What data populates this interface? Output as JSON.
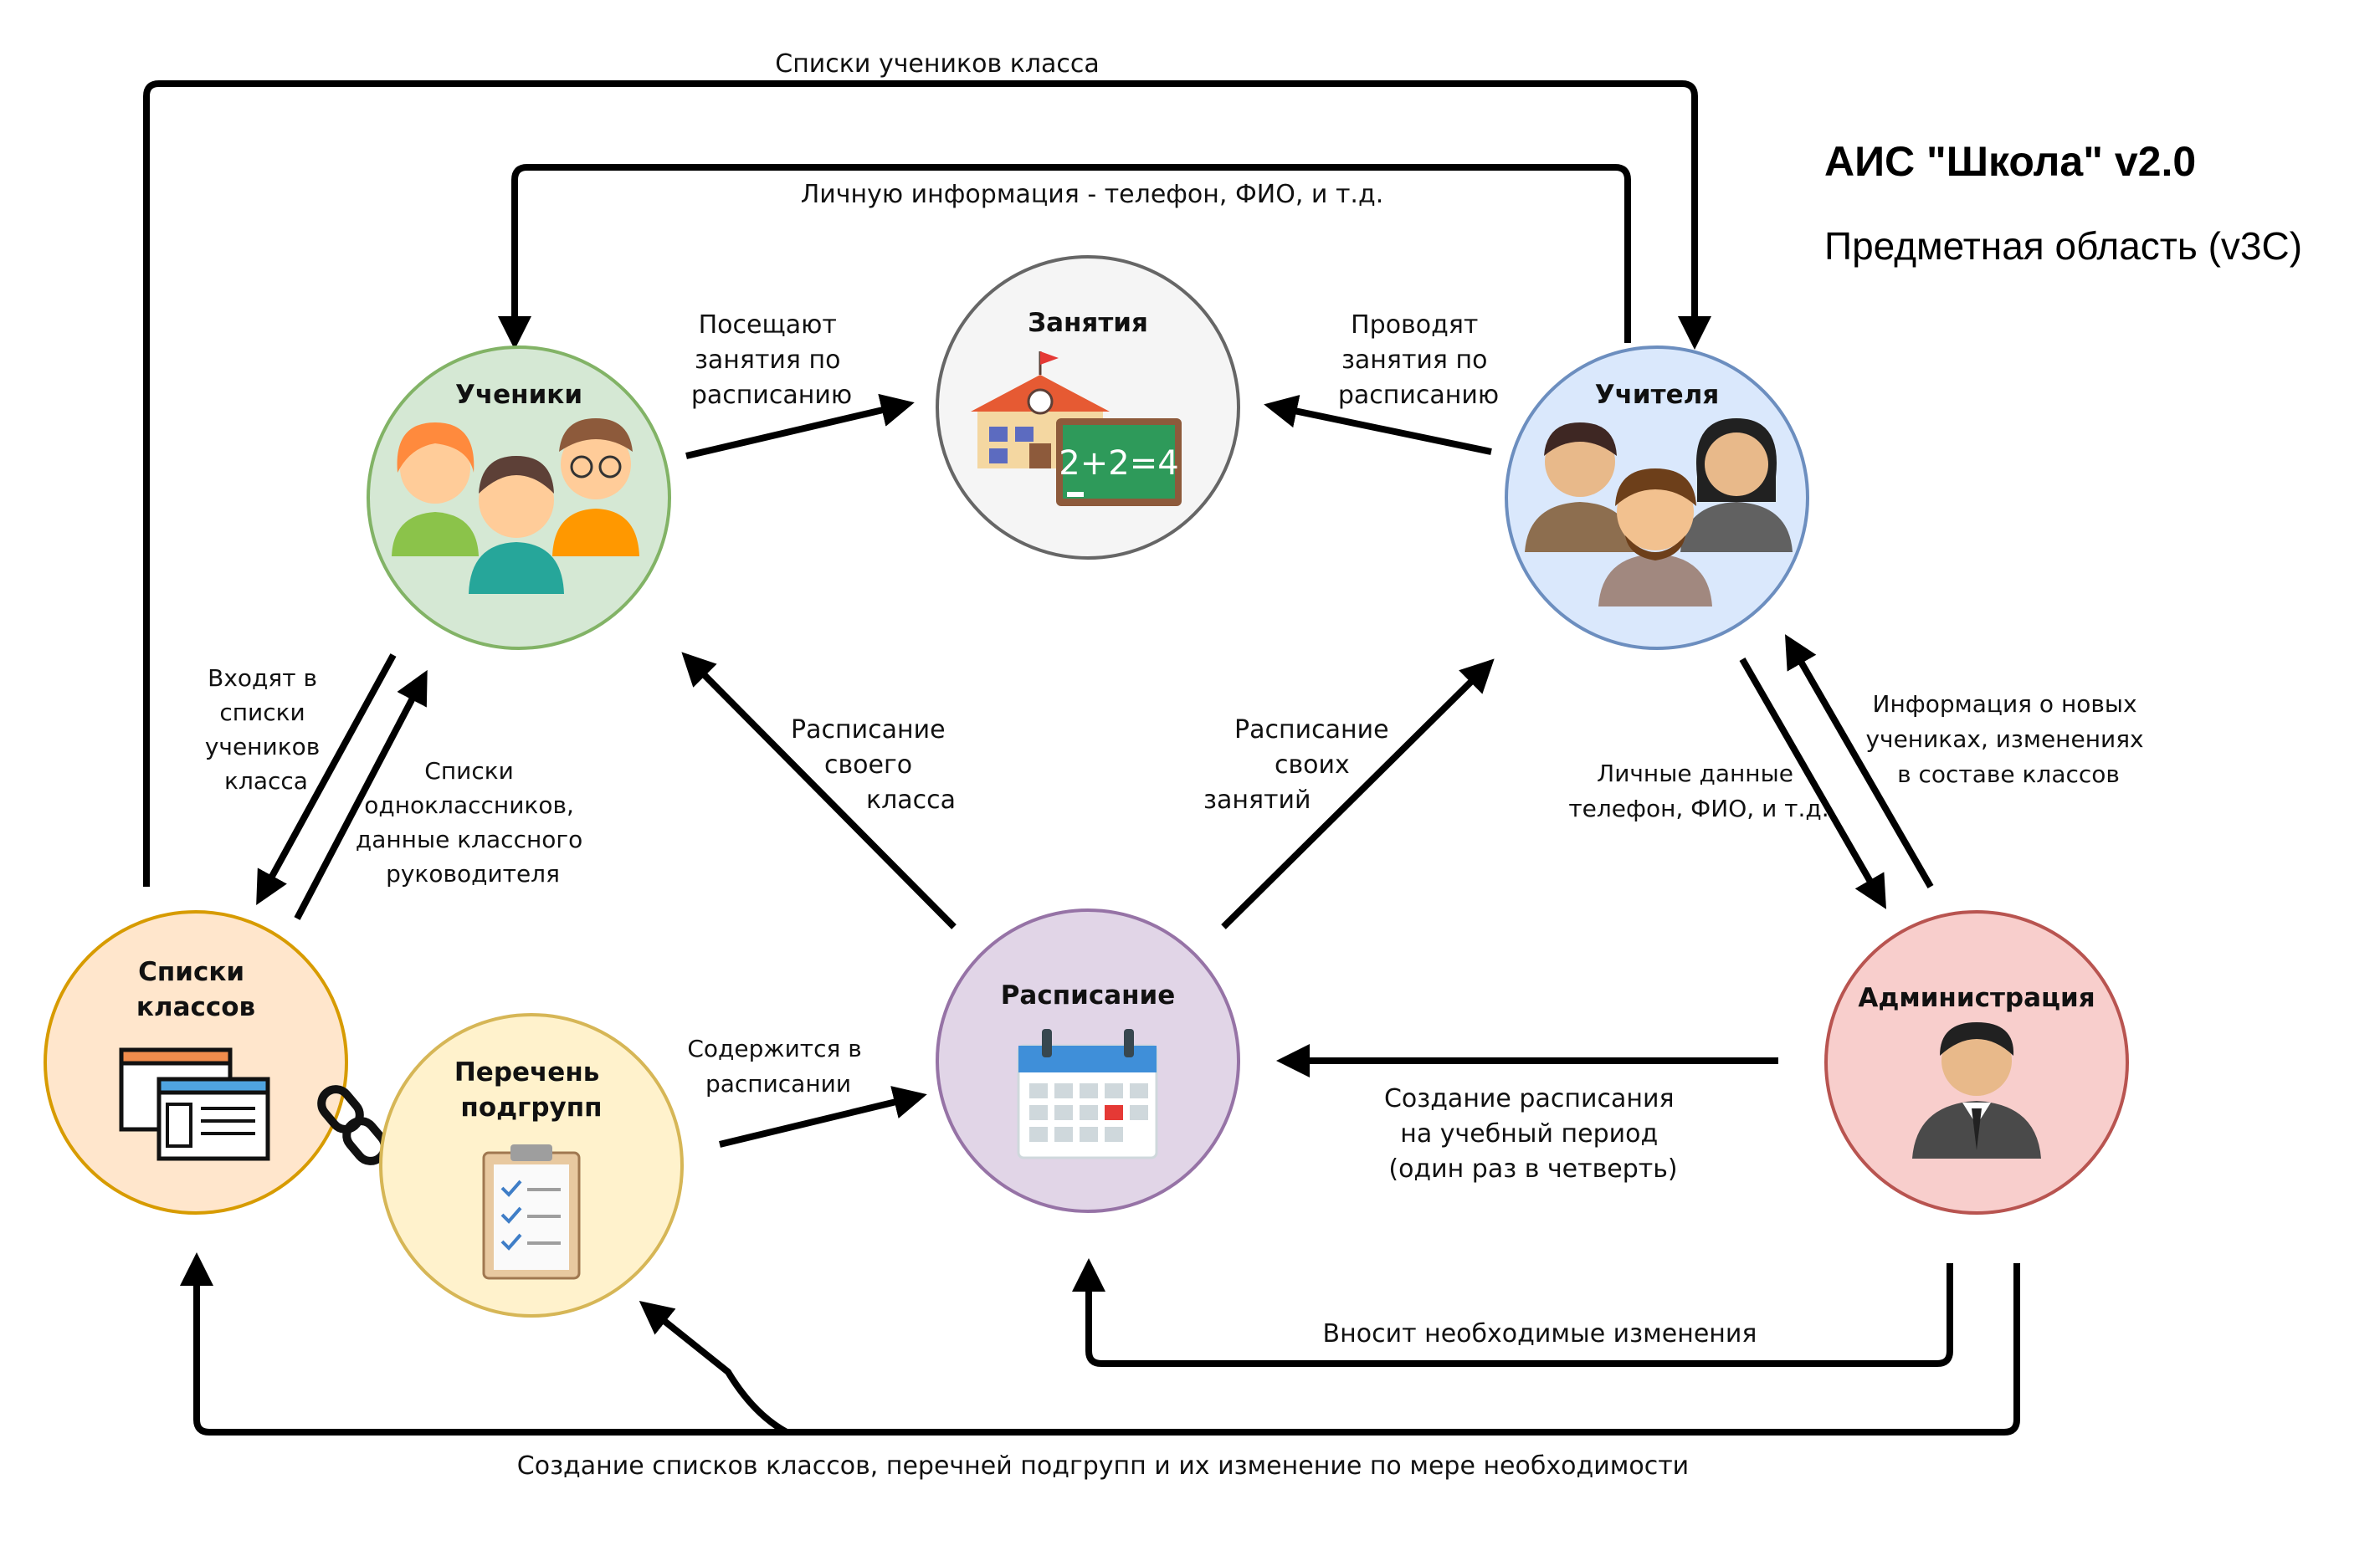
{
  "title": {
    "main": "АИС \"Школа\" v2.0",
    "subtitle": "Предметная область (v3C)"
  },
  "nodes": {
    "students": {
      "title": "Ученики",
      "icon": "students-group-icon",
      "fill": "#d5e8d4",
      "stroke": "#82b366"
    },
    "lessons": {
      "title": "Занятия",
      "icon": "school-blackboard-icon",
      "fill": "#f5f5f5",
      "stroke": "#666666"
    },
    "teachers": {
      "title": "Учителя",
      "icon": "teachers-group-icon",
      "fill": "#dae8fc",
      "stroke": "#6c8ebf"
    },
    "class_lists": {
      "title_line1": "Списки",
      "title_line2": "классов",
      "icon": "browser-windows-icon",
      "fill": "#ffe6cc",
      "stroke": "#d79b00"
    },
    "subgroups": {
      "title_line1": "Перечень",
      "title_line2": "подгрупп",
      "icon": "clipboard-checklist-icon",
      "fill": "#fff2cc",
      "stroke": "#d6b656"
    },
    "schedule": {
      "title": "Расписание",
      "icon": "calendar-icon",
      "fill": "#e1d5e7",
      "stroke": "#9673a6"
    },
    "administration": {
      "title": "Администрация",
      "icon": "administrator-icon",
      "fill": "#f8cecc",
      "stroke": "#b85450"
    }
  },
  "edges": {
    "class_student_lists": "Списки учеников класса",
    "personal_info": "Личную информация - телефон, ФИО, и т.д.",
    "attend": [
      "Посещают",
      "занятия по",
      "расписанию"
    ],
    "conduct": [
      "Проводят",
      "занятия по",
      "расписанию"
    ],
    "included_in": [
      "Входят в",
      "списки",
      "учеников",
      "класса"
    ],
    "classmates": [
      "Списки",
      "одноклассников,",
      "данные классного",
      "руководителя"
    ],
    "class_schedule": [
      "Расписание",
      "своего",
      "класса"
    ],
    "own_schedule": [
      "Расписание",
      "своих",
      "занятий"
    ],
    "personal_data": [
      "Личные данные",
      "телефон, ФИО, и т.д."
    ],
    "new_students_info": [
      "Информация о новых",
      "учениках, изменениях",
      "в составе классов"
    ],
    "contained_in": [
      "Содержится в",
      "расписании"
    ],
    "create_schedule": [
      "Создание расписания",
      "на учебный период",
      "(один раз в четверть)"
    ],
    "make_changes": "Вносит необходимые изменения",
    "create_lists": "Создание списков классов, перечней подгрупп и их изменение по мере необходимости"
  }
}
